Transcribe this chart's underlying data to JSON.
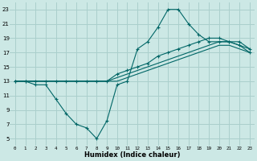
{
  "xlabel": "Humidex (Indice chaleur)",
  "bg_color": "#cce8e5",
  "grid_color": "#aacfcc",
  "line_color": "#006666",
  "xlim": [
    -0.5,
    23.5
  ],
  "ylim": [
    4,
    24
  ],
  "yticks": [
    5,
    7,
    9,
    11,
    13,
    15,
    17,
    19,
    21,
    23
  ],
  "xticks": [
    0,
    1,
    2,
    3,
    4,
    5,
    6,
    7,
    8,
    9,
    10,
    11,
    12,
    13,
    14,
    15,
    16,
    17,
    18,
    19,
    20,
    21,
    22,
    23
  ],
  "line1_x": [
    0,
    1,
    2,
    3,
    4,
    5,
    6,
    7,
    8,
    9,
    10,
    11,
    12,
    13,
    14,
    15,
    16,
    17,
    18,
    19,
    20,
    21,
    22,
    23
  ],
  "line1_y": [
    13,
    13,
    12.5,
    12.5,
    10.5,
    8.5,
    7.0,
    6.5,
    5.0,
    7.5,
    12.5,
    13.0,
    17.5,
    18.5,
    20.5,
    23.0,
    23.0,
    21.0,
    19.5,
    18.5,
    18.5,
    18.5,
    18.0,
    17.0
  ],
  "line2_x": [
    0,
    1,
    2,
    3,
    4,
    5,
    6,
    7,
    8,
    9,
    10,
    11,
    12,
    13,
    14,
    15,
    16,
    17,
    18,
    19,
    20,
    21,
    22,
    23
  ],
  "line2_y": [
    13,
    13,
    13,
    13,
    13,
    13,
    13,
    13,
    13,
    13,
    14.0,
    14.5,
    15.0,
    15.5,
    16.5,
    17.0,
    17.5,
    18.0,
    18.5,
    19.0,
    19.0,
    18.5,
    18.5,
    17.5
  ],
  "line3_x": [
    0,
    1,
    2,
    3,
    4,
    5,
    6,
    7,
    8,
    9,
    10,
    11,
    12,
    13,
    14,
    15,
    16,
    17,
    18,
    19,
    20,
    21,
    22,
    23
  ],
  "line3_y": [
    13,
    13,
    13,
    13,
    13,
    13,
    13,
    13,
    13,
    13,
    13.5,
    14.0,
    14.5,
    15.0,
    15.5,
    16.0,
    16.5,
    17.0,
    17.5,
    18.0,
    18.5,
    18.5,
    18.0,
    17.5
  ],
  "line4_x": [
    0,
    1,
    2,
    3,
    4,
    5,
    6,
    7,
    8,
    9,
    10,
    11,
    12,
    13,
    14,
    15,
    16,
    17,
    18,
    19,
    20,
    21,
    22,
    23
  ],
  "line4_y": [
    13,
    13,
    13,
    13,
    13,
    13,
    13,
    13,
    13,
    13,
    13.0,
    13.5,
    14.0,
    14.5,
    15.0,
    15.5,
    16.0,
    16.5,
    17.0,
    17.5,
    18.0,
    18.0,
    17.5,
    17.0
  ]
}
